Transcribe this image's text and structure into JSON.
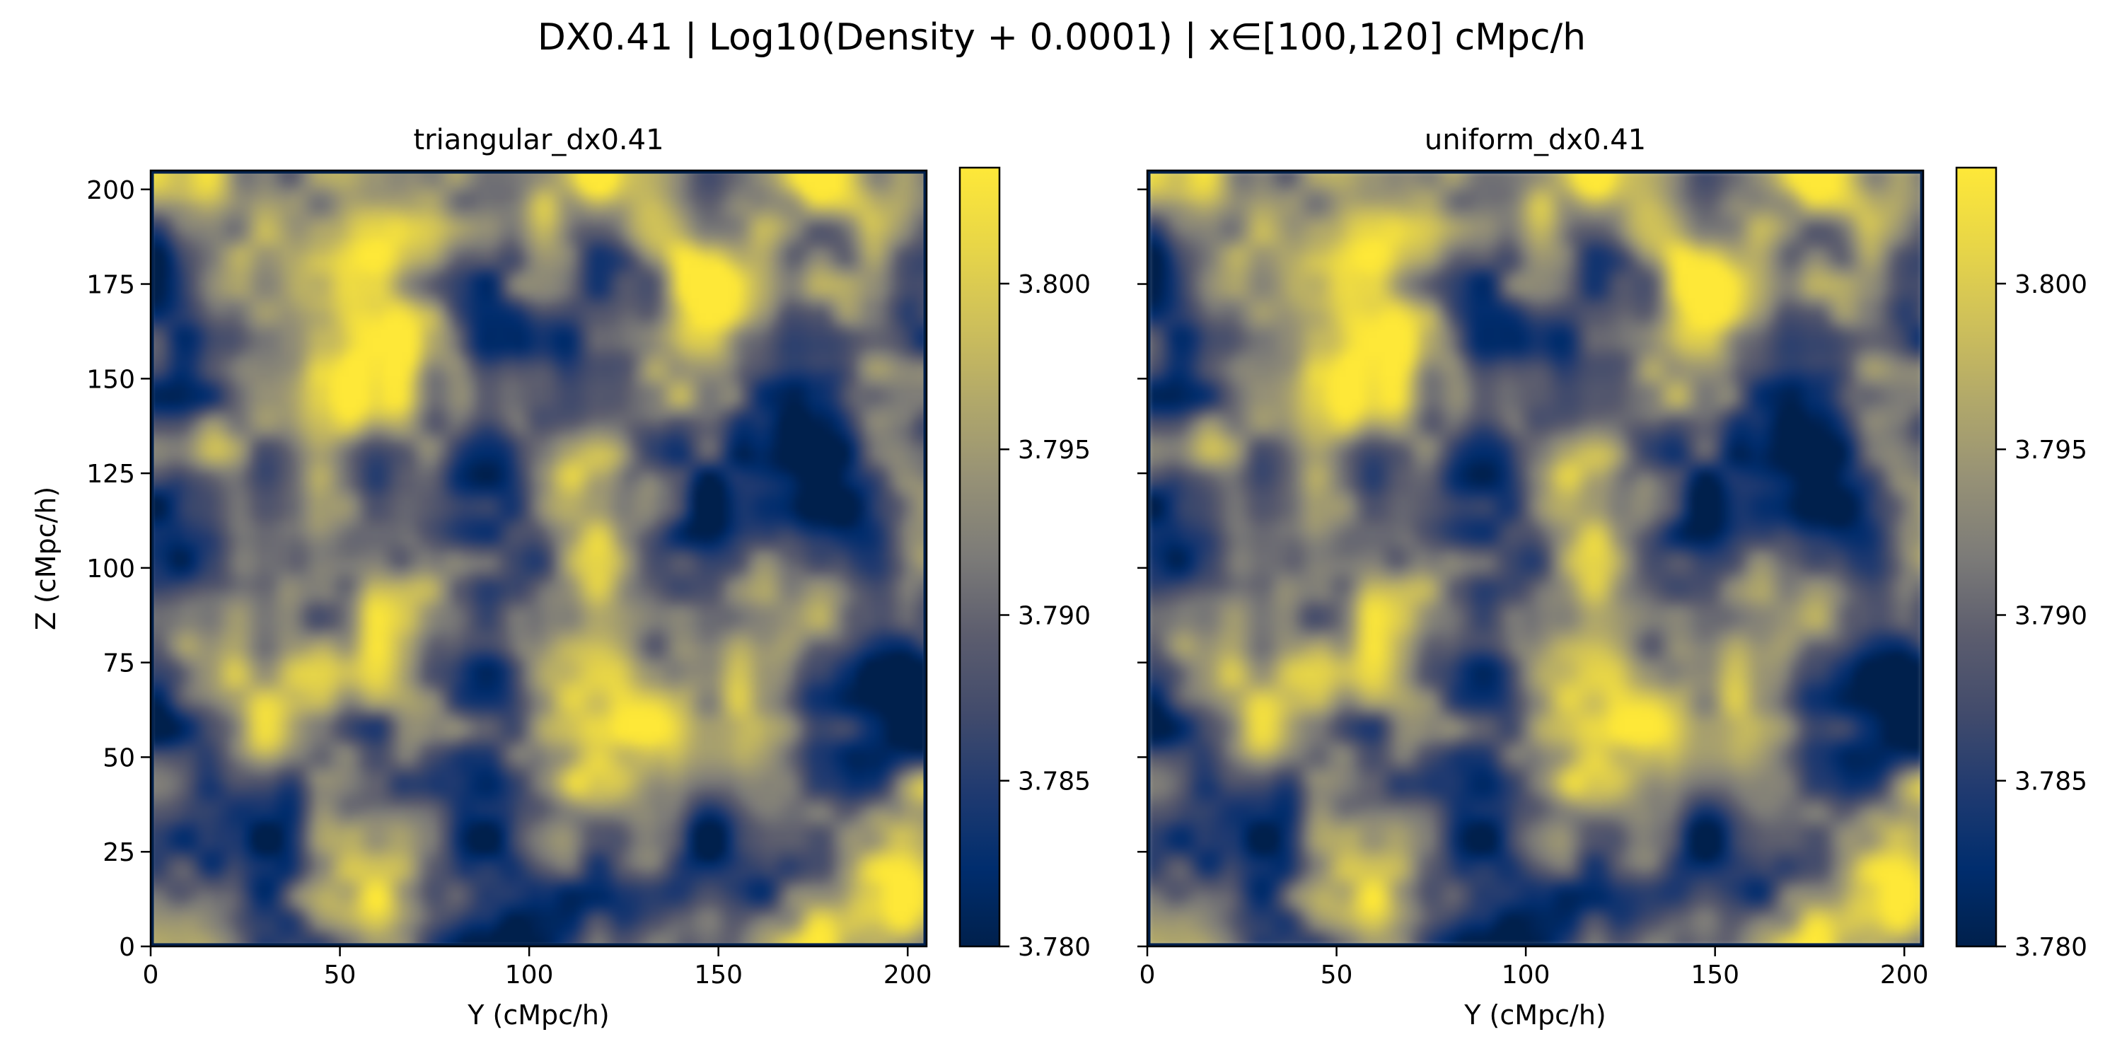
{
  "figure": {
    "suptitle": "DX0.41 | Log10(Density + 0.0001) | x∈[100,120] cMpc/h"
  },
  "colors": {
    "colormap": "cividis",
    "colormap_low": "#00204c",
    "colormap_mid": "#7c7b78",
    "colormap_high": "#fee838",
    "axis": "#000000",
    "text": "#000000"
  },
  "chart_data": [
    {
      "type": "heatmap",
      "title": "triangular_dx0.41",
      "xlabel": "Y (cMpc/h)",
      "ylabel": "Z (cMpc/h)",
      "xlim": [
        0,
        205
      ],
      "ylim": [
        0,
        205
      ],
      "xticks": [
        0,
        50,
        100,
        150,
        200
      ],
      "xtick_labels": [
        "0",
        "50",
        "100",
        "150",
        "200"
      ],
      "yticks": [
        0,
        25,
        50,
        75,
        100,
        125,
        150,
        175,
        200
      ],
      "ytick_labels": [
        "0",
        "25",
        "50",
        "75",
        "100",
        "125",
        "150",
        "175",
        "200"
      ],
      "show_ytick_labels": true,
      "colorbar": {
        "vmin": 3.78,
        "vmax": 3.8035,
        "ticks": [
          3.78,
          3.785,
          3.79,
          3.795,
          3.8
        ],
        "tick_labels": [
          "3.780",
          "3.785",
          "3.790",
          "3.795",
          "3.800"
        ]
      },
      "field_seed": 41
    },
    {
      "type": "heatmap",
      "title": "uniform_dx0.41",
      "xlabel": "Y (cMpc/h)",
      "ylabel": "",
      "xlim": [
        0,
        205
      ],
      "ylim": [
        0,
        205
      ],
      "xticks": [
        0,
        50,
        100,
        150,
        200
      ],
      "xtick_labels": [
        "0",
        "50",
        "100",
        "150",
        "200"
      ],
      "yticks": [
        0,
        25,
        50,
        75,
        100,
        125,
        150,
        175,
        200
      ],
      "ytick_labels": [],
      "show_ytick_labels": false,
      "colorbar": {
        "vmin": 3.78,
        "vmax": 3.8035,
        "ticks": [
          3.78,
          3.785,
          3.79,
          3.795,
          3.8
        ],
        "tick_labels": [
          "3.780",
          "3.785",
          "3.790",
          "3.795",
          "3.800"
        ]
      },
      "field_seed": 41
    }
  ]
}
